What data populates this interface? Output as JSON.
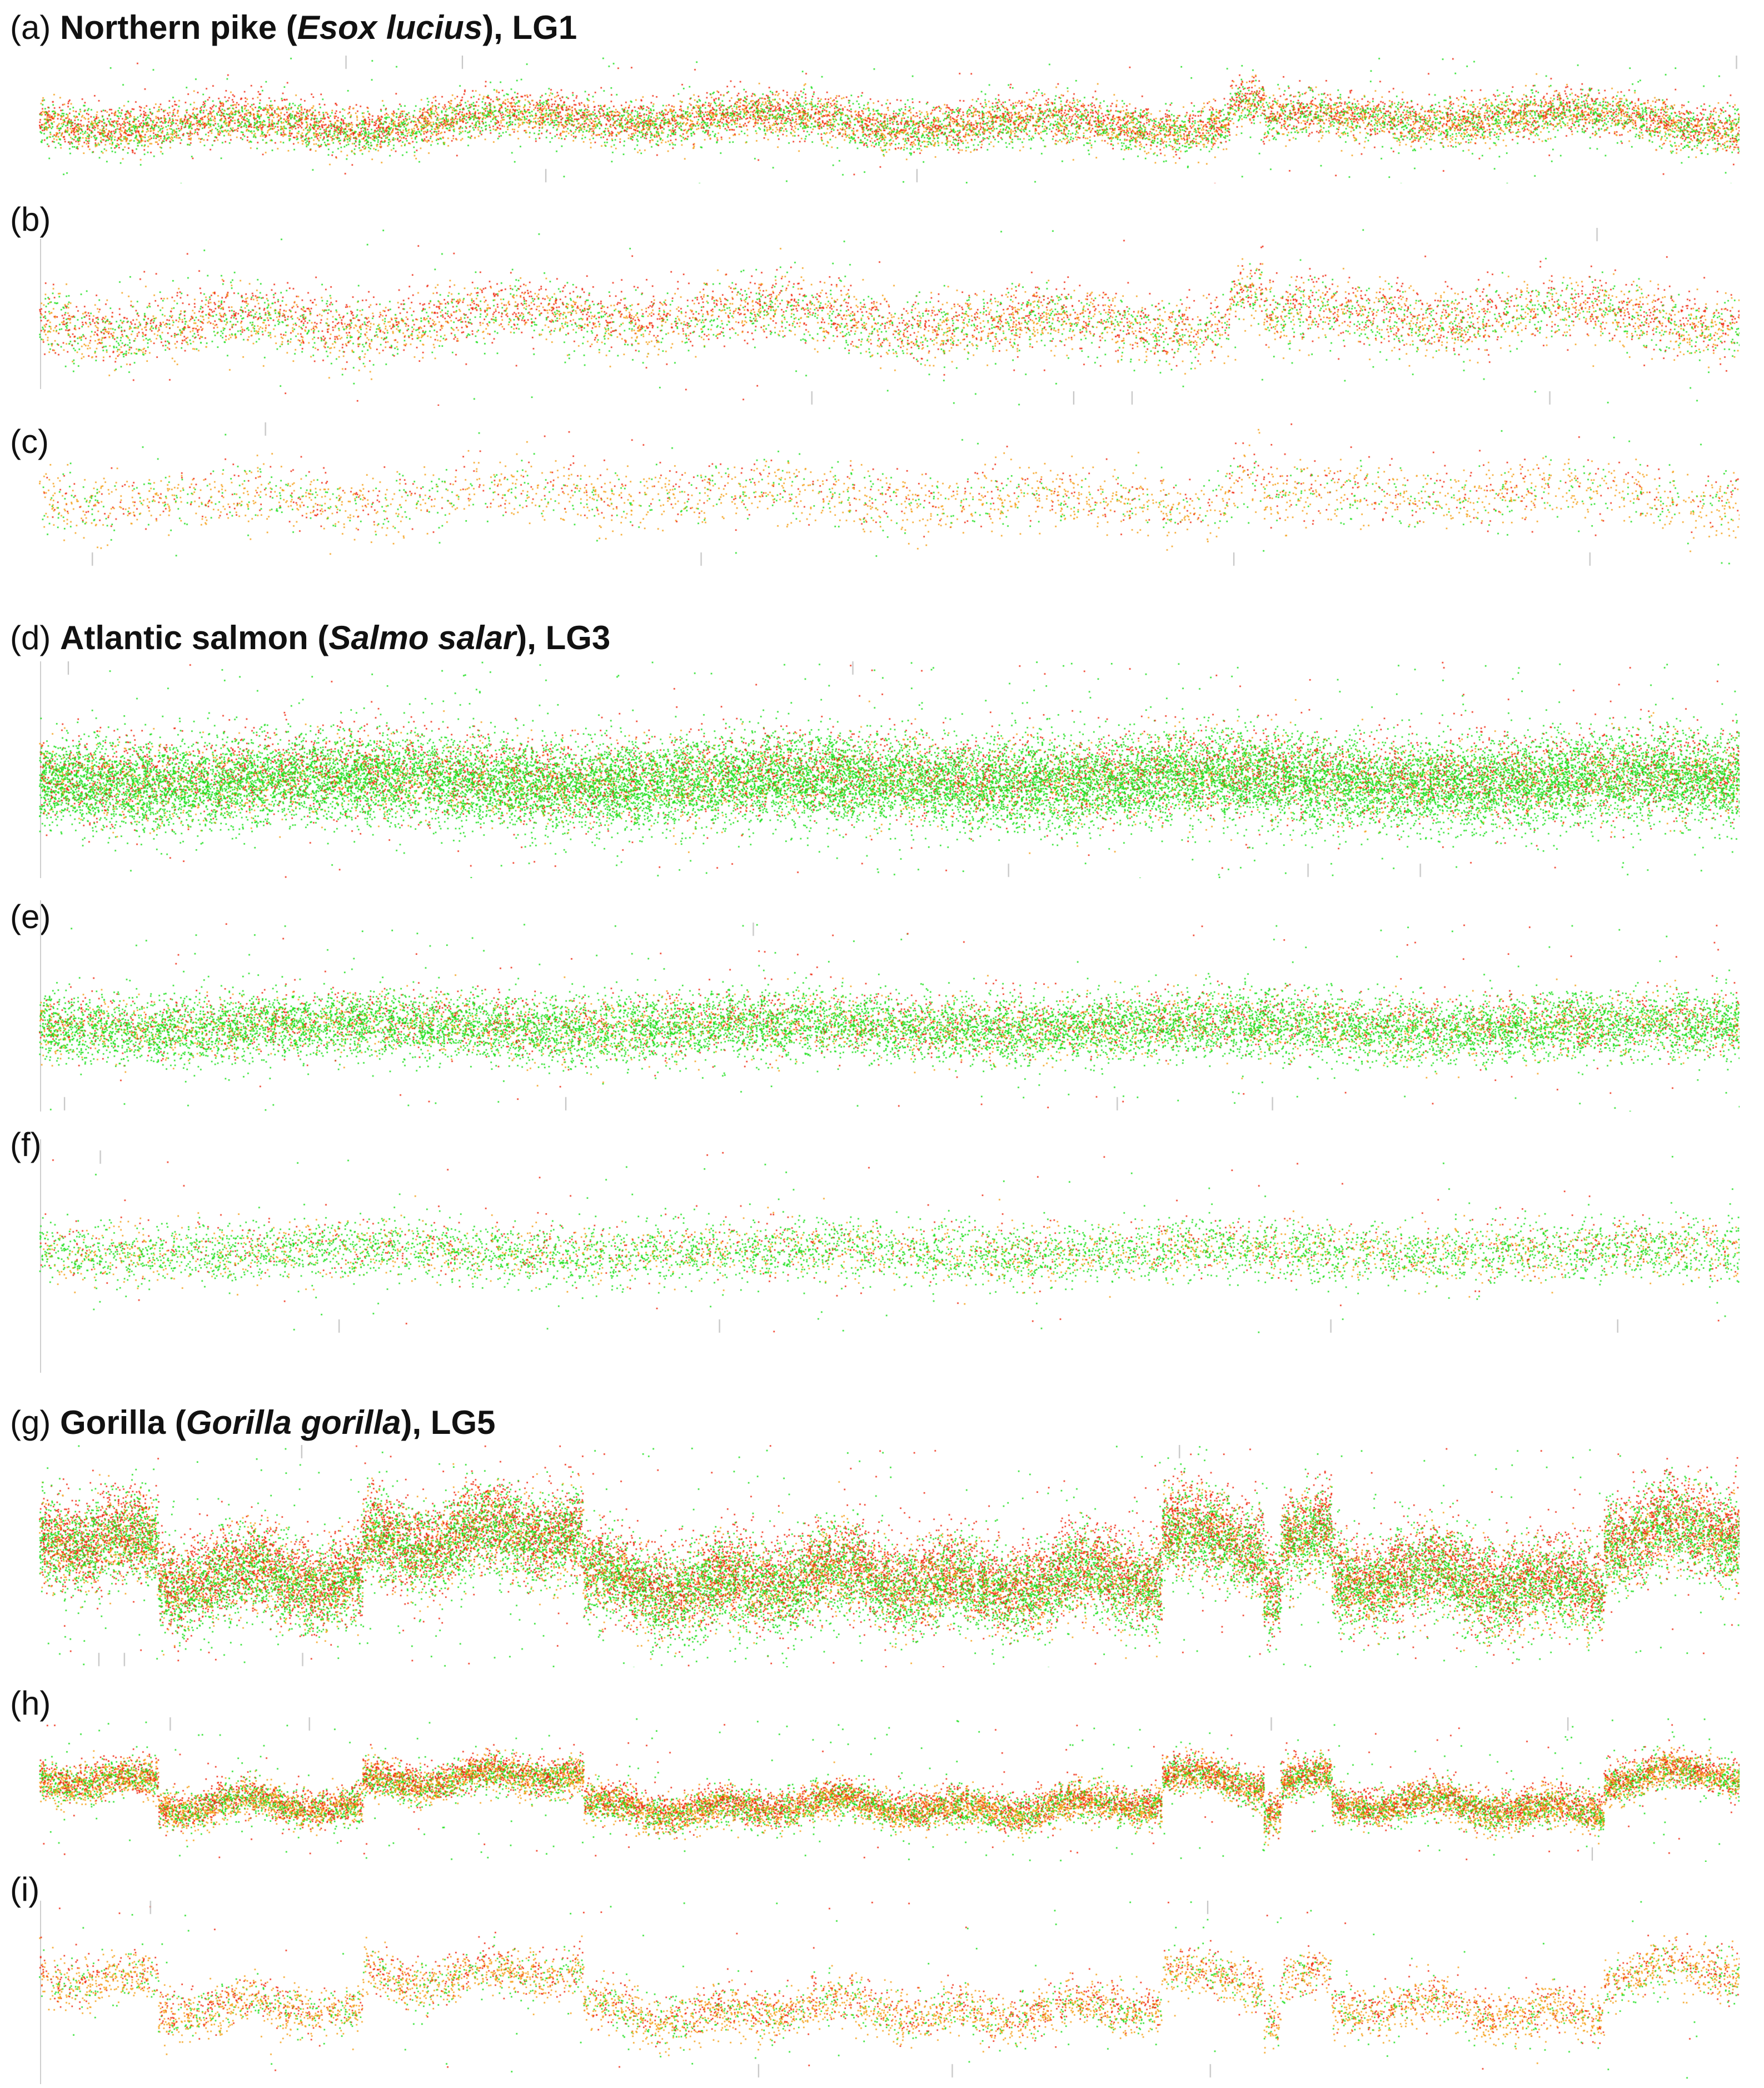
{
  "colors": {
    "green": "#1fe01f",
    "orange": "#f5a019",
    "red": "#f02a12",
    "tick": "#bdbdbd"
  },
  "chart_data": [
    {
      "type": "scatter",
      "tag": "(a)",
      "title_main": "Northern pike (",
      "title_italic": "Esox lucius",
      "title_tail": "), LG1",
      "profile": "pike",
      "green_share": 0.35,
      "red_share": 0.35,
      "density": 12000,
      "spread": 0.09,
      "ylim": [
        0,
        1
      ],
      "xlim": [
        0,
        1
      ]
    },
    {
      "type": "scatter",
      "tag": "(b)",
      "profile": "pike",
      "green_share": 0.3,
      "red_share": 0.35,
      "density": 7000,
      "spread": 0.09,
      "ylim": [
        0,
        1
      ],
      "xlim": [
        0,
        1
      ]
    },
    {
      "type": "scatter",
      "tag": "(c)",
      "profile": "pike",
      "green_share": 0.22,
      "red_share": 0.2,
      "density": 3200,
      "spread": 0.11,
      "ylim": [
        0,
        1
      ],
      "xlim": [
        0,
        1
      ]
    },
    {
      "type": "scatter",
      "tag": "(d)",
      "title_main": "Atlantic salmon (",
      "title_italic": "Salmo salar",
      "title_tail": "), LG3",
      "profile": "salmon",
      "green_share": 0.72,
      "red_share": 0.18,
      "density": 26000,
      "spread": 0.1,
      "ylim": [
        0,
        1
      ],
      "xlim": [
        0,
        1
      ]
    },
    {
      "type": "scatter",
      "tag": "(e)",
      "profile": "salmon",
      "green_share": 0.7,
      "red_share": 0.15,
      "density": 15000,
      "spread": 0.085,
      "ylim": [
        0,
        1
      ],
      "xlim": [
        0,
        1
      ]
    },
    {
      "type": "scatter",
      "tag": "(f)",
      "profile": "salmon",
      "green_share": 0.65,
      "red_share": 0.12,
      "density": 7000,
      "spread": 0.08,
      "ylim": [
        0,
        1
      ],
      "xlim": [
        0,
        1
      ]
    },
    {
      "type": "scatter",
      "tag": "(g)",
      "title_main": "Gorilla (",
      "title_italic": "Gorilla gorilla",
      "title_tail": "), LG5",
      "profile": "gorilla",
      "green_share": 0.45,
      "red_share": 0.35,
      "density": 30000,
      "spread": 0.1,
      "ylim": [
        0,
        1
      ],
      "xlim": [
        0,
        1
      ]
    },
    {
      "type": "scatter",
      "tag": "(h)",
      "profile": "gorilla",
      "green_share": 0.3,
      "red_share": 0.3,
      "density": 18000,
      "spread": 0.065,
      "ylim": [
        0,
        1
      ],
      "xlim": [
        0,
        1
      ]
    },
    {
      "type": "scatter",
      "tag": "(i)",
      "profile": "gorilla",
      "green_share": 0.2,
      "red_share": 0.25,
      "density": 7000,
      "spread": 0.07,
      "ylim": [
        0,
        1
      ],
      "xlim": [
        0,
        1
      ]
    }
  ]
}
